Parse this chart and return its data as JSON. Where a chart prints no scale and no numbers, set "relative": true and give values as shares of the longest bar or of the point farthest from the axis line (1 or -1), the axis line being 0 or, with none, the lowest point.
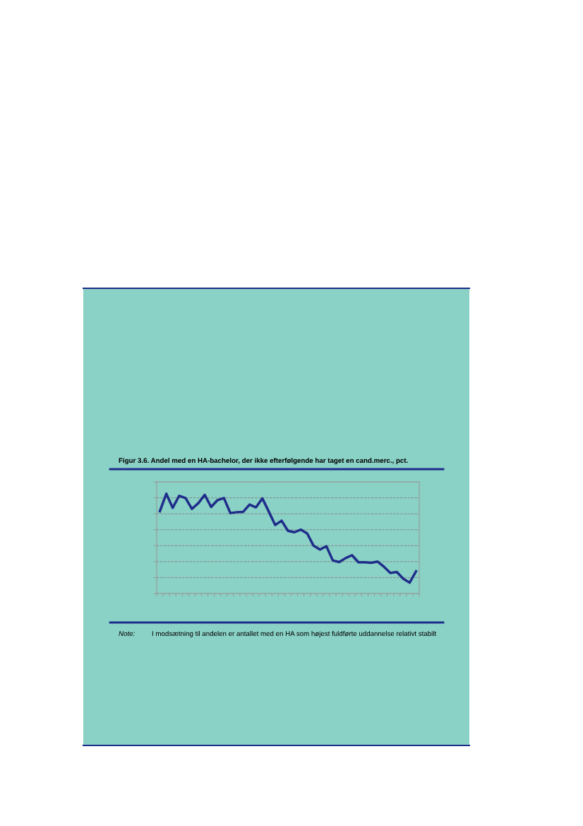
{
  "chart_data": {
    "type": "line",
    "title": "Figur 3.6. Andel med en HA-bachelor, der ikke efterfølgende har taget en cand.merc., pct.",
    "categories": [
      null,
      null,
      null,
      null,
      null,
      null,
      null,
      null,
      null,
      null,
      null,
      null,
      null,
      null,
      null,
      null,
      null,
      null,
      null,
      null,
      null,
      null,
      null,
      null,
      null,
      null,
      null,
      null,
      null,
      null,
      null,
      null,
      null,
      null,
      null,
      null,
      null,
      null,
      null,
      null,
      null
    ],
    "relative": true,
    "series": [
      {
        "color": "#1f2d8a",
        "values": [
          0.825,
          1,
          0.858,
          0.979,
          0.957,
          0.848,
          0.905,
          0.988,
          0.867,
          0.936,
          0.957,
          0.806,
          0.815,
          0.818,
          0.891,
          0.863,
          0.953,
          0.822,
          0.687,
          0.73,
          0.628,
          0.614,
          0.64,
          0.602,
          0.479,
          0.441,
          0.474,
          0.332,
          0.315,
          0.355,
          0.384,
          0.313,
          0.313,
          0.308,
          0.32,
          0.268,
          0.206,
          0.216,
          0.149,
          0.109,
          0.223
        ]
      }
    ],
    "grid": "y",
    "legend": false,
    "marker": "none",
    "line_style": "solid",
    "annotations": [
      "Note:",
      "I modsætning til andelen er antallet med en HA som højest fuldførte uddannelse relativt stabilt"
    ]
  }
}
